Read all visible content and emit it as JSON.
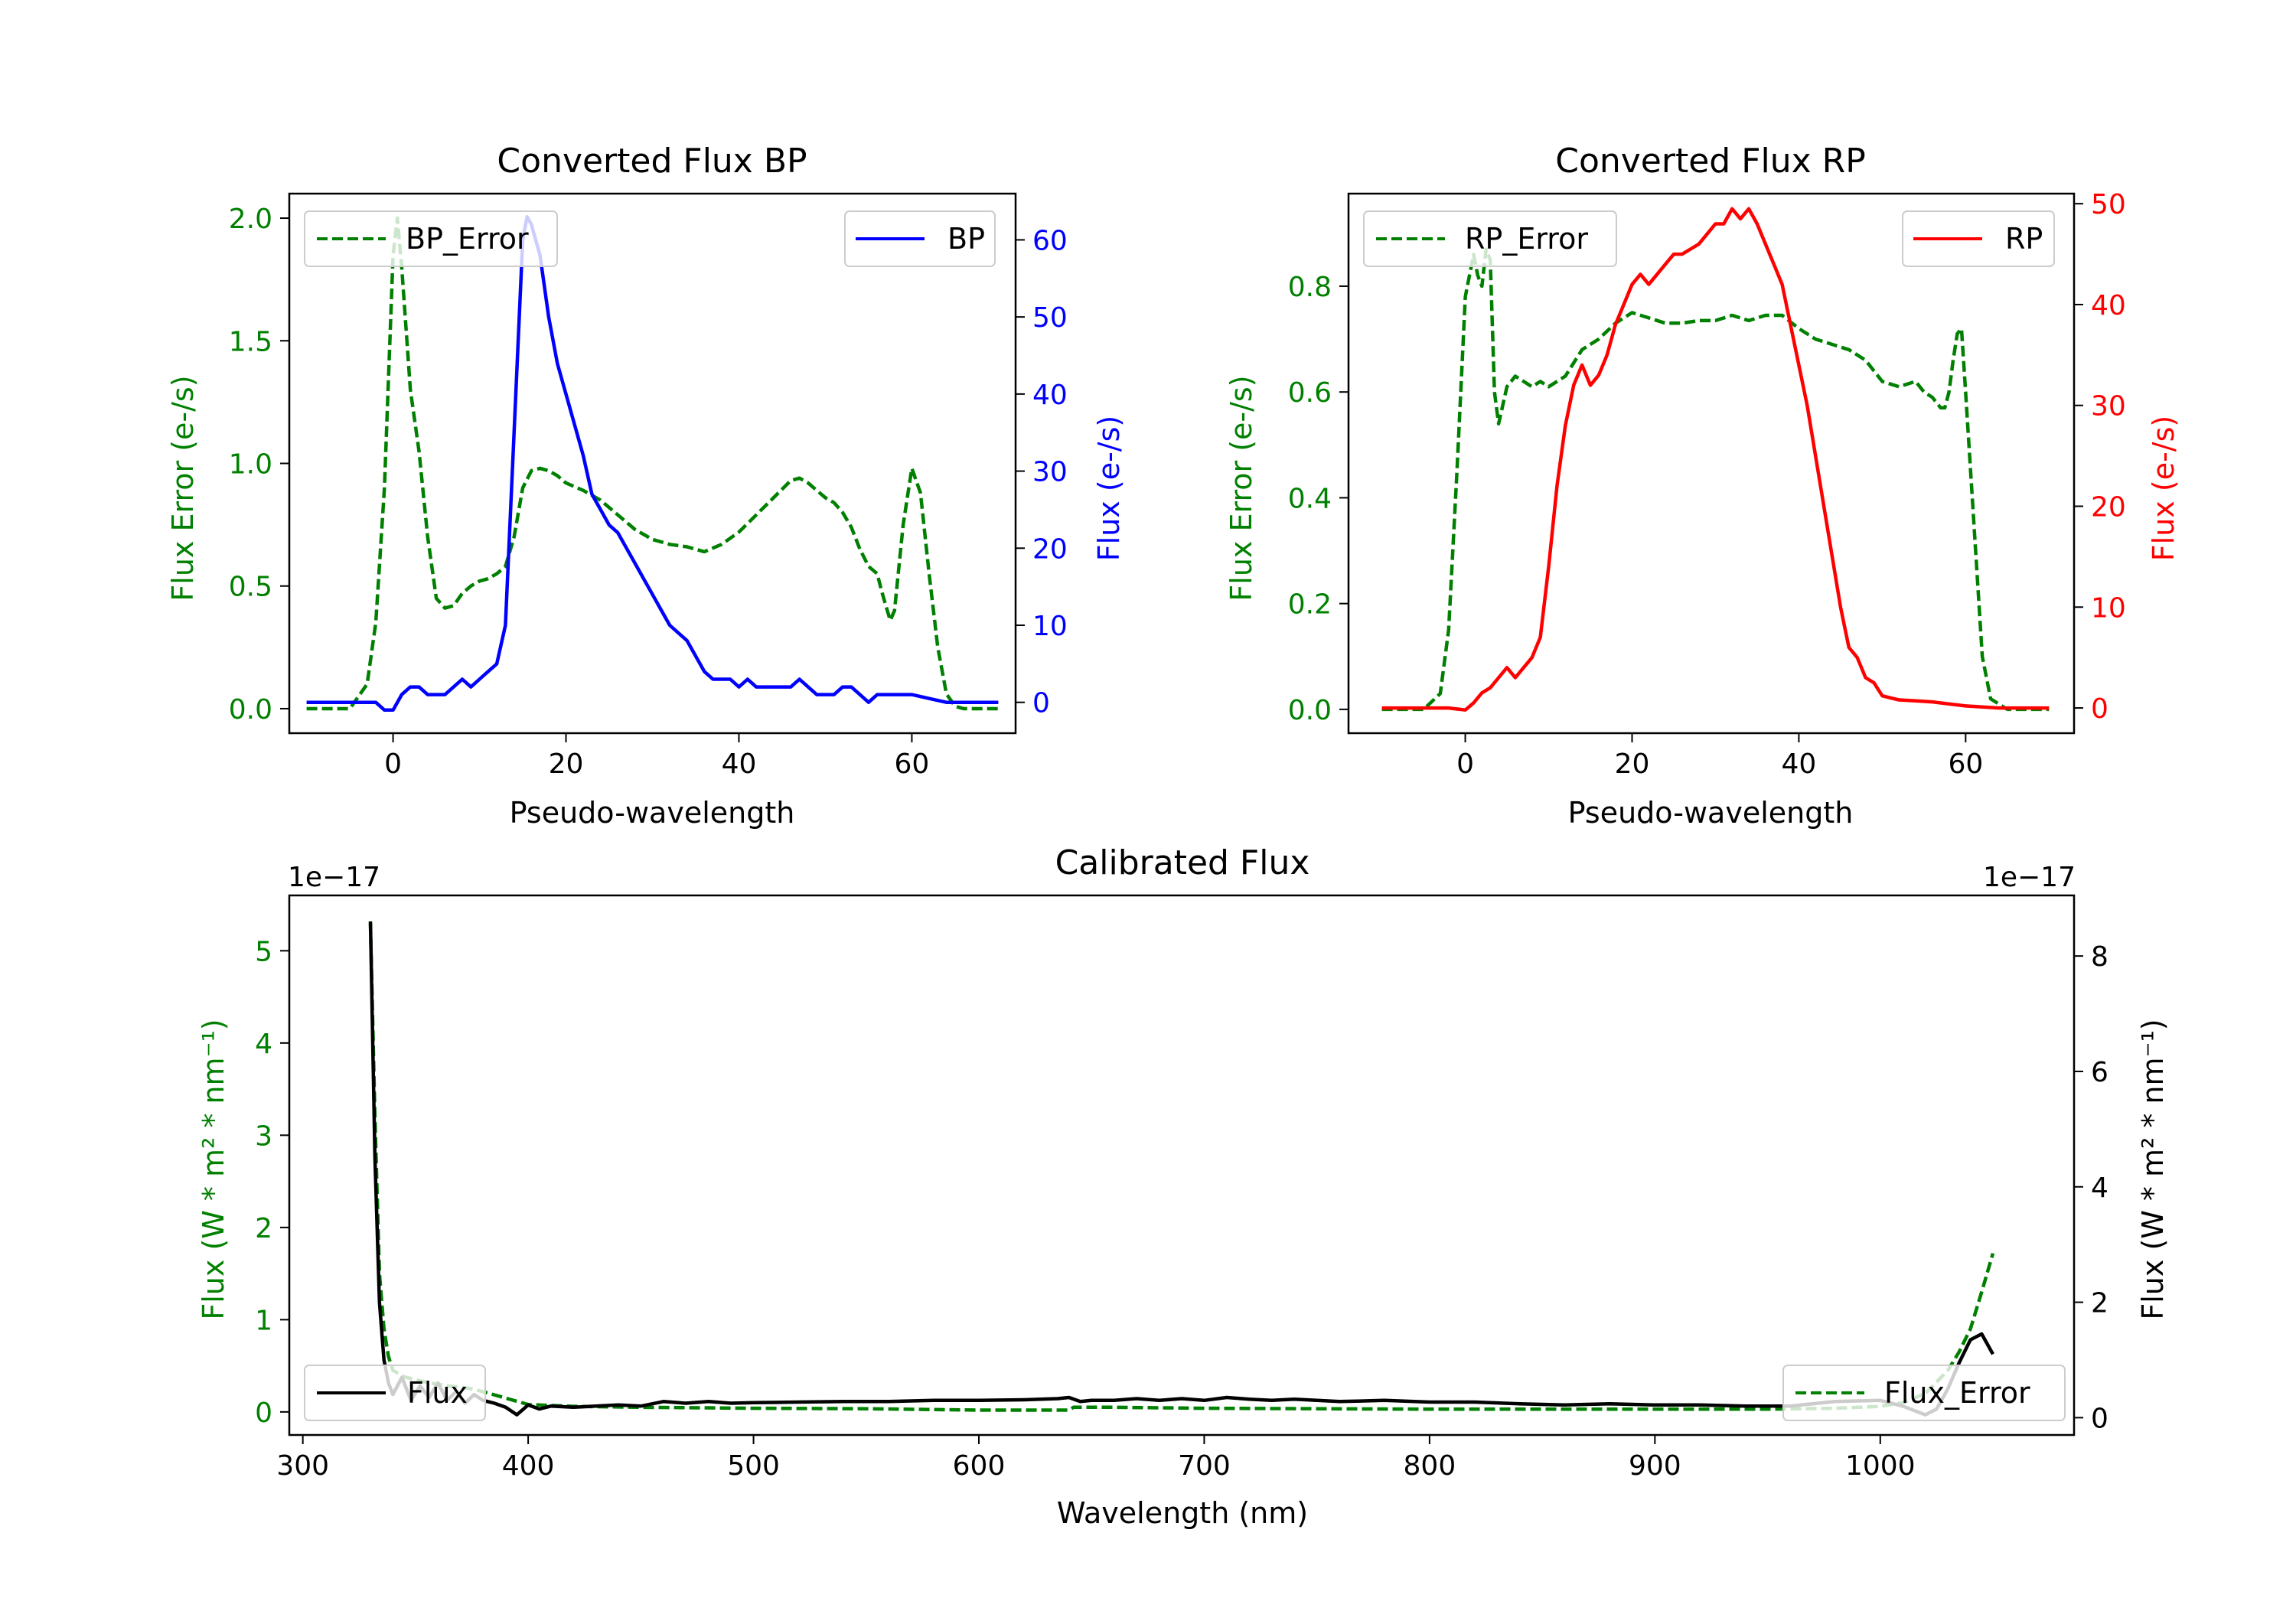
{
  "colors": {
    "error": "#008000",
    "bp": "#0000ff",
    "rp": "#ff0000",
    "flux": "#000000",
    "axis": "#000000"
  },
  "chart_data": [
    {
      "id": "bp",
      "type": "line",
      "title": "Converted Flux BP",
      "xlabel": "Pseudo-wavelength",
      "ylabel_left": "Flux Error (e-/s)",
      "ylabel_right": "Flux (e-/s)",
      "xlim": [
        -12,
        72
      ],
      "ylim_left": [
        -0.1,
        2.1
      ],
      "ylim_right": [
        -4,
        66
      ],
      "xticks": [
        0,
        20,
        40,
        60
      ],
      "yticks_left": [
        "0.0",
        "0.5",
        "1.0",
        "1.5",
        "2.0"
      ],
      "yticks_right": [
        "0",
        "10",
        "20",
        "30",
        "40",
        "50",
        "60"
      ],
      "legend": {
        "left_label": "BP_Error",
        "right_label": "BP"
      },
      "series": [
        {
          "name": "BP_Error",
          "axis": "left",
          "style": "dashed",
          "color": "#008000",
          "x": [
            -10,
            -5,
            -3,
            -2,
            -1,
            0,
            0.5,
            1,
            2,
            3,
            4,
            5,
            6,
            7,
            8,
            9,
            10,
            11,
            12,
            13,
            14,
            15,
            16,
            17,
            18,
            19,
            20,
            22,
            24,
            26,
            28,
            30,
            32,
            34,
            36,
            38,
            40,
            42,
            44,
            46,
            47,
            48,
            49,
            50,
            51,
            52,
            53,
            54,
            55,
            56,
            56.5,
            57,
            57.5,
            58,
            59,
            60,
            61,
            62,
            63,
            64,
            65,
            66,
            68,
            70
          ],
          "y": [
            0,
            0,
            0.1,
            0.35,
            0.9,
            1.85,
            2.0,
            1.8,
            1.3,
            1.05,
            0.7,
            0.45,
            0.41,
            0.42,
            0.47,
            0.5,
            0.52,
            0.53,
            0.55,
            0.58,
            0.7,
            0.9,
            0.97,
            0.98,
            0.97,
            0.95,
            0.92,
            0.89,
            0.85,
            0.79,
            0.73,
            0.69,
            0.67,
            0.66,
            0.64,
            0.67,
            0.72,
            0.79,
            0.86,
            0.93,
            0.94,
            0.92,
            0.89,
            0.86,
            0.84,
            0.8,
            0.74,
            0.65,
            0.58,
            0.55,
            0.48,
            0.42,
            0.36,
            0.4,
            0.75,
            0.98,
            0.88,
            0.55,
            0.25,
            0.06,
            0.01,
            0,
            0,
            0
          ]
        },
        {
          "name": "BP",
          "axis": "right",
          "style": "solid",
          "color": "#0000ff",
          "x": [
            -10,
            -6,
            -4,
            -2,
            -1,
            0,
            1,
            2,
            3,
            4,
            5,
            6,
            7,
            8,
            9,
            10,
            11,
            12,
            13,
            14,
            15,
            15.5,
            16,
            17,
            18,
            19,
            20,
            21,
            22,
            23,
            24,
            25,
            26,
            27,
            28,
            29,
            30,
            31,
            32,
            33,
            34,
            35,
            36,
            37,
            38,
            39,
            40,
            41,
            42,
            43,
            44,
            45,
            46,
            47,
            48,
            49,
            50,
            51,
            52,
            53,
            54,
            55,
            56,
            58,
            60,
            62,
            64,
            66,
            68,
            70
          ],
          "y": [
            0,
            0,
            0,
            0,
            -1,
            -1,
            1,
            2,
            2,
            1,
            1,
            1,
            2,
            3,
            2,
            3,
            4,
            5,
            10,
            35,
            60,
            63,
            62,
            58,
            50,
            44,
            40,
            36,
            32,
            27,
            25,
            23,
            22,
            20,
            18,
            16,
            14,
            12,
            10,
            9,
            8,
            6,
            4,
            3,
            3,
            3,
            2,
            3,
            2,
            2,
            2,
            2,
            2,
            3,
            2,
            1,
            1,
            1,
            2,
            2,
            1,
            0,
            1,
            1,
            1,
            0.5,
            0,
            0,
            0,
            0
          ]
        }
      ]
    },
    {
      "id": "rp",
      "type": "line",
      "title": "Converted Flux RP",
      "xlabel": "Pseudo-wavelength",
      "ylabel_left": "Flux Error (e-/s)",
      "ylabel_right": "Flux (e-/s)",
      "xlim": [
        -14,
        73
      ],
      "ylim_left": [
        -0.045,
        0.975
      ],
      "ylim_right": [
        -2.5,
        51
      ],
      "xticks": [
        0,
        20,
        40,
        60
      ],
      "yticks_left": [
        "0.0",
        "0.2",
        "0.4",
        "0.6",
        "0.8"
      ],
      "yticks_right": [
        "0",
        "10",
        "20",
        "30",
        "40",
        "50"
      ],
      "legend": {
        "left_label": "RP_Error",
        "right_label": "RP"
      },
      "series": [
        {
          "name": "RP_Error",
          "axis": "left",
          "style": "dashed",
          "color": "#008000",
          "x": [
            -10,
            -5,
            -3,
            -2,
            -1,
            0,
            1,
            1.5,
            2,
            2.5,
            3,
            3.5,
            4,
            5,
            6,
            7,
            8,
            9,
            10,
            12,
            14,
            16,
            18,
            20,
            22,
            24,
            26,
            28,
            30,
            32,
            34,
            36,
            38,
            40,
            42,
            44,
            46,
            48,
            50,
            52,
            54,
            55,
            56,
            57,
            57.5,
            58,
            58.5,
            59,
            59.5,
            60,
            61,
            62,
            63,
            65,
            70
          ],
          "y": [
            0,
            0,
            0.03,
            0.15,
            0.45,
            0.78,
            0.86,
            0.82,
            0.8,
            0.87,
            0.85,
            0.6,
            0.54,
            0.61,
            0.63,
            0.62,
            0.61,
            0.62,
            0.61,
            0.63,
            0.68,
            0.7,
            0.73,
            0.75,
            0.74,
            0.73,
            0.73,
            0.735,
            0.735,
            0.745,
            0.735,
            0.745,
            0.745,
            0.72,
            0.7,
            0.69,
            0.68,
            0.66,
            0.62,
            0.61,
            0.62,
            0.6,
            0.59,
            0.57,
            0.57,
            0.6,
            0.66,
            0.71,
            0.72,
            0.6,
            0.35,
            0.1,
            0.02,
            0,
            0
          ]
        },
        {
          "name": "RP",
          "axis": "right",
          "style": "solid",
          "color": "#ff0000",
          "x": [
            -10,
            -4,
            -2,
            0,
            1,
            2,
            3,
            4,
            5,
            6,
            7,
            8,
            9,
            10,
            11,
            12,
            13,
            14,
            15,
            16,
            17,
            18,
            19,
            20,
            21,
            22,
            23,
            24,
            25,
            26,
            27,
            28,
            29,
            30,
            31,
            32,
            33,
            34,
            35,
            36,
            37,
            38,
            39,
            40,
            41,
            42,
            43,
            44,
            45,
            46,
            47,
            48,
            49,
            50,
            51,
            52,
            54,
            56,
            58,
            60,
            62,
            64,
            66,
            68,
            70
          ],
          "y": [
            0,
            0,
            0,
            -0.2,
            0.5,
            1.5,
            2,
            3,
            4,
            3,
            4,
            5,
            7,
            14,
            22,
            28,
            32,
            34,
            32,
            33,
            35,
            38,
            40,
            42,
            43,
            42,
            43,
            44,
            45,
            45,
            45.5,
            46,
            47,
            48,
            48,
            49.5,
            48.5,
            49.5,
            48,
            46,
            44,
            42,
            38,
            34,
            30,
            25,
            20,
            15,
            10,
            6,
            5,
            3,
            2.5,
            1.2,
            1,
            0.8,
            0.7,
            0.6,
            0.4,
            0.2,
            0.1,
            0,
            0,
            0,
            0
          ]
        }
      ]
    },
    {
      "id": "calibrated",
      "type": "line",
      "title": "Calibrated Flux",
      "xlabel": "Wavelength (nm)",
      "ylabel_left": "Flux (W * m² * nm⁻¹)",
      "ylabel_right": "Flux (W * m² * nm⁻¹)",
      "offset_left": "1e−17",
      "offset_right": "1e−17",
      "xlim": [
        294,
        1086
      ],
      "ylim_left": [
        -0.25,
        5.6
      ],
      "ylim_right": [
        -0.3,
        9.05
      ],
      "xticks": [
        300,
        400,
        500,
        600,
        700,
        800,
        900,
        1000
      ],
      "yticks_left": [
        "0",
        "1",
        "2",
        "3",
        "4",
        "5"
      ],
      "yticks_right": [
        "0",
        "2",
        "4",
        "6",
        "8"
      ],
      "legend": {
        "left_label": "Flux",
        "right_label": "Flux_Error"
      },
      "series": [
        {
          "name": "Flux_Error",
          "axis": "left",
          "style": "dashed",
          "color": "#008000",
          "x": [
            330,
            332,
            334,
            336,
            338,
            340,
            345,
            350,
            355,
            360,
            365,
            370,
            375,
            380,
            390,
            400,
            420,
            450,
            500,
            550,
            600,
            640,
            642,
            660,
            700,
            750,
            800,
            850,
            900,
            950,
            980,
            1000,
            1010,
            1020,
            1030,
            1035,
            1040,
            1045,
            1050
          ],
          "y": [
            5.3,
            3.2,
            1.5,
            0.9,
            0.6,
            0.45,
            0.38,
            0.35,
            0.32,
            0.3,
            0.28,
            0.27,
            0.25,
            0.22,
            0.15,
            0.08,
            0.06,
            0.05,
            0.04,
            0.035,
            0.02,
            0.02,
            0.05,
            0.05,
            0.04,
            0.035,
            0.03,
            0.03,
            0.03,
            0.03,
            0.04,
            0.06,
            0.1,
            0.2,
            0.45,
            0.65,
            0.9,
            1.3,
            1.72
          ]
        },
        {
          "name": "Flux",
          "axis": "right",
          "style": "solid",
          "color": "#000000",
          "x": [
            330,
            332,
            334,
            336,
            338,
            340,
            344,
            348,
            352,
            356,
            360,
            364,
            368,
            372,
            376,
            380,
            385,
            390,
            395,
            400,
            405,
            410,
            420,
            430,
            440,
            450,
            460,
            470,
            480,
            490,
            500,
            520,
            540,
            560,
            580,
            600,
            620,
            635,
            640,
            645,
            650,
            660,
            670,
            680,
            690,
            700,
            710,
            720,
            730,
            740,
            750,
            760,
            780,
            800,
            820,
            840,
            860,
            880,
            900,
            920,
            940,
            960,
            980,
            1000,
            1010,
            1020,
            1025,
            1030,
            1035,
            1040,
            1045,
            1050
          ],
          "y": [
            8.6,
            4.5,
            2.0,
            1.0,
            0.6,
            0.4,
            0.7,
            0.3,
            0.55,
            0.35,
            0.6,
            0.3,
            0.45,
            0.25,
            0.4,
            0.3,
            0.25,
            0.18,
            0.05,
            0.22,
            0.15,
            0.2,
            0.18,
            0.2,
            0.22,
            0.2,
            0.28,
            0.25,
            0.28,
            0.25,
            0.26,
            0.27,
            0.28,
            0.28,
            0.3,
            0.3,
            0.31,
            0.33,
            0.35,
            0.28,
            0.3,
            0.3,
            0.33,
            0.3,
            0.33,
            0.3,
            0.35,
            0.32,
            0.3,
            0.32,
            0.3,
            0.28,
            0.3,
            0.27,
            0.27,
            0.24,
            0.22,
            0.24,
            0.22,
            0.22,
            0.2,
            0.2,
            0.28,
            0.3,
            0.2,
            0.05,
            0.15,
            0.5,
            0.95,
            1.35,
            1.45,
            1.1
          ]
        }
      ]
    }
  ]
}
